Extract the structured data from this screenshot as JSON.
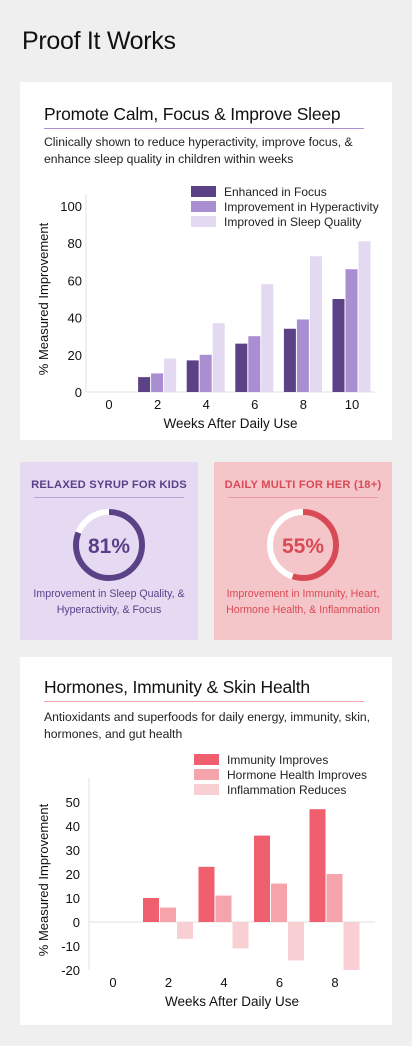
{
  "page_title": "Proof It Works",
  "colors": {
    "purple_dark": "#5b4185",
    "purple_mid": "#a98ed2",
    "purple_light": "#e3d9f0",
    "red_dark": "#ef5f6d",
    "red_mid": "#f4a4aa",
    "red_light": "#f8cfd2",
    "stat1_text": "#5b3f8a",
    "stat2_text": "#d94a57"
  },
  "card1": {
    "title": "Promote Calm, Focus & Improve Sleep",
    "subtitle": "Clinically shown to reduce hyperactivity, improve focus, & enhance sleep quality in children within weeks"
  },
  "card2": {
    "title": "Hormones, Immunity & Skin Health",
    "subtitle": "Antioxidants and superfoods for daily energy, immunity, skin, hormones, and gut health"
  },
  "stats": [
    {
      "title": "RELAXED SYRUP FOR KIDS",
      "percent_label": "81%",
      "percent": 81,
      "description": "Improvement in Sleep Quality, & Hyperactivity, & Focus"
    },
    {
      "title": "DAILY MULTI FOR HER (18+)",
      "percent_label": "55%",
      "percent": 55,
      "description": "Improvement in Immunity, Heart, Hormone Health, & Inflammation"
    }
  ],
  "chart_data": [
    {
      "type": "bar",
      "title": "",
      "xlabel": "Weeks After Daily Use",
      "ylabel": "% Measured Improvement",
      "categories": [
        "0",
        "2",
        "4",
        "6",
        "8",
        "10"
      ],
      "ylim": [
        0,
        100
      ],
      "yticks": [
        "0",
        "20",
        "40",
        "60",
        "80",
        "100"
      ],
      "grid": false,
      "legend": "top-right",
      "series": [
        {
          "name": "Enhanced in Focus",
          "values": [
            0,
            8,
            17,
            26,
            34,
            50
          ],
          "color": "#5b4185"
        },
        {
          "name": "Improvement in Hyperactivity",
          "values": [
            0,
            10,
            20,
            30,
            39,
            66
          ],
          "color": "#a98ed2"
        },
        {
          "name": "Improved in Sleep Quality",
          "values": [
            0,
            18,
            37,
            58,
            73,
            81
          ],
          "color": "#e3d9f0"
        }
      ]
    },
    {
      "type": "bar",
      "title": "",
      "xlabel": "Weeks After Daily Use",
      "ylabel": "% Measured Improvement",
      "categories": [
        "0",
        "2",
        "4",
        "6",
        "8"
      ],
      "ylim": [
        -20,
        55
      ],
      "yticks": [
        "-20",
        "-10",
        "0",
        "10",
        "20",
        "30",
        "40",
        "50"
      ],
      "grid": false,
      "legend": "top-right",
      "series": [
        {
          "name": "Immunity Improves",
          "values": [
            0,
            10,
            23,
            36,
            47
          ],
          "color": "#ef5f6d"
        },
        {
          "name": "Hormone Health Improves",
          "values": [
            0,
            6,
            11,
            16,
            20
          ],
          "color": "#f4a4aa"
        },
        {
          "name": "Inflammation Reduces",
          "values": [
            0,
            -7,
            -11,
            -16,
            -20
          ],
          "color": "#f8cfd2"
        }
      ]
    }
  ]
}
